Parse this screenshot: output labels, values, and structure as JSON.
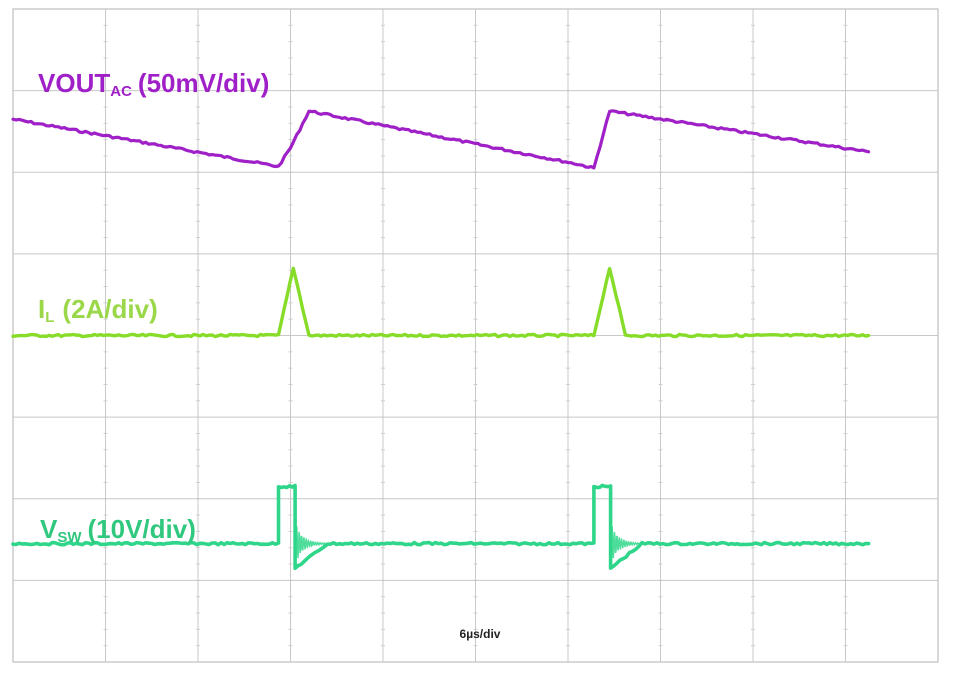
{
  "chart_data": {
    "type": "line",
    "grid": true,
    "x_divisions": 10,
    "y_divisions": 8,
    "x_range": [
      0,
      10
    ],
    "y_range": [
      0,
      8
    ],
    "timebase_label": "6µs/div",
    "series": [
      {
        "name": "VOUT",
        "name_sub": "AC",
        "scale": "(50mV/div)",
        "color": "#a020c8",
        "x": [
          0.0,
          2.87,
          3.0,
          3.2,
          6.1,
          6.28,
          6.45,
          9.25
        ],
        "y": [
          6.65,
          6.07,
          6.3,
          6.75,
          6.1,
          6.05,
          6.75,
          6.25
        ]
      },
      {
        "name": "I",
        "name_sub": "L",
        "scale": "(2A/div)",
        "color": "#86dc28",
        "x": [
          0.0,
          2.87,
          3.03,
          3.2,
          6.28,
          6.45,
          6.62,
          9.25
        ],
        "y": [
          4.0,
          4.0,
          4.83,
          4.0,
          4.0,
          4.83,
          4.0,
          4.0
        ]
      },
      {
        "name": "V",
        "name_sub": "SW",
        "scale": "(10V/div)",
        "color": "#2fd68a",
        "x": [
          0.0,
          2.87,
          2.87,
          3.05,
          3.05,
          3.4,
          6.28,
          6.28,
          6.46,
          6.46,
          6.8,
          9.25
        ],
        "y": [
          1.45,
          1.45,
          2.15,
          2.15,
          1.15,
          1.45,
          1.45,
          2.15,
          2.15,
          1.15,
          1.45,
          1.45
        ]
      }
    ]
  }
}
